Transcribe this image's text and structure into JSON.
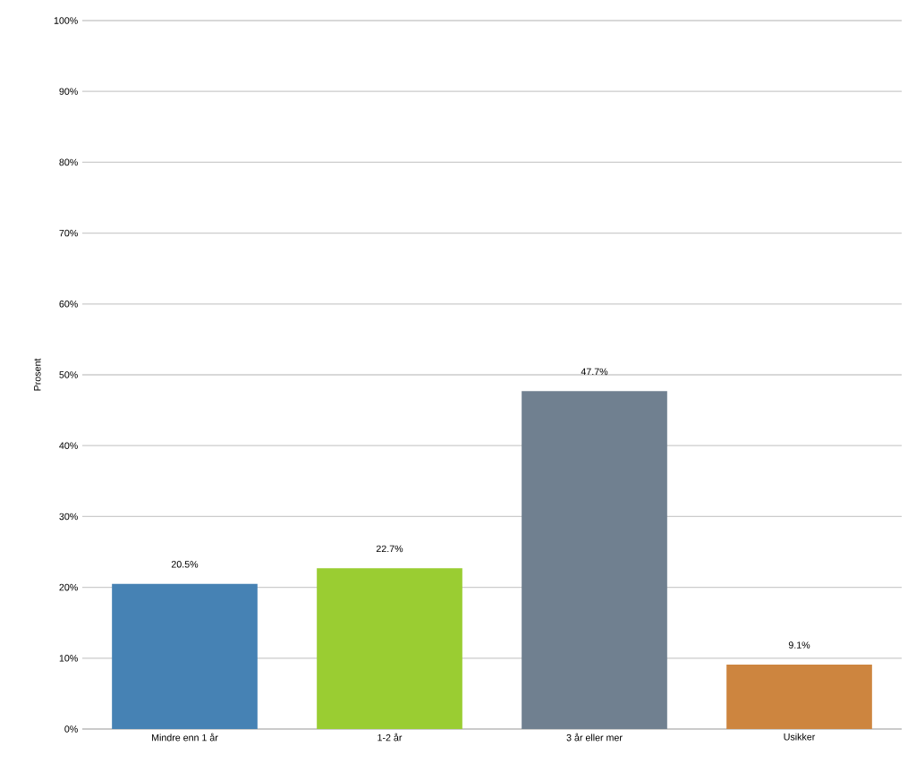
{
  "chart_data": {
    "type": "bar",
    "ylabel": "Prosent",
    "categories": [
      "Mindre enn 1 år",
      "1-2 år",
      "3 år eller mer",
      "Usikker"
    ],
    "values": [
      20.5,
      22.7,
      47.7,
      9.1
    ],
    "value_labels": [
      "20.5%",
      "22.7%",
      "47.7%",
      "9.1%"
    ],
    "colors": [
      "#4682b4",
      "#9acd32",
      "#708090",
      "#cd853f"
    ],
    "ylim": [
      0,
      100
    ],
    "yticks": [
      {
        "value": 0,
        "label": "0%"
      },
      {
        "value": 10,
        "label": "10%"
      },
      {
        "value": 20,
        "label": "20%"
      },
      {
        "value": 30,
        "label": "30%"
      },
      {
        "value": 40,
        "label": "40%"
      },
      {
        "value": 50,
        "label": "50%"
      },
      {
        "value": 60,
        "label": "60%"
      },
      {
        "value": 70,
        "label": "70%"
      },
      {
        "value": 80,
        "label": "80%"
      },
      {
        "value": 90,
        "label": "90%"
      },
      {
        "value": 100,
        "label": "100%"
      }
    ],
    "grid": "y"
  }
}
